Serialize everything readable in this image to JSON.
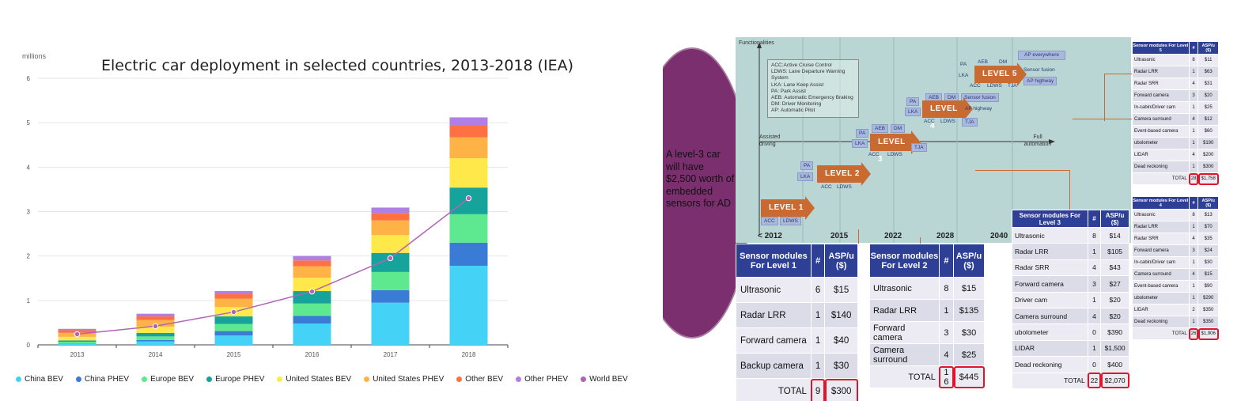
{
  "chart": {
    "title": "Electric car deployment in selected countries, 2013-2018 (IEA)",
    "unit": "millions"
  },
  "chart_data": {
    "type": "bar",
    "title": "Electric car deployment in selected countries, 2013-2018 (IEA)",
    "ylabel": "millions",
    "ylim": [
      0,
      6
    ],
    "yticks": [
      0,
      1,
      2,
      3,
      4,
      5,
      6
    ],
    "categories": [
      "2013",
      "2014",
      "2015",
      "2016",
      "2017",
      "2018"
    ],
    "stacked": true,
    "series": [
      {
        "name": "China BEV",
        "color": "#45d2f7",
        "values": [
          0.02,
          0.08,
          0.21,
          0.48,
          0.95,
          1.78
        ]
      },
      {
        "name": "China PHEV",
        "color": "#3a7bd5",
        "values": [
          0.01,
          0.03,
          0.1,
          0.17,
          0.28,
          0.52
        ]
      },
      {
        "name": "Europe BEV",
        "color": "#5ee88f",
        "values": [
          0.04,
          0.08,
          0.16,
          0.28,
          0.41,
          0.64
        ]
      },
      {
        "name": "Europe PHEV",
        "color": "#16a39b",
        "values": [
          0.03,
          0.08,
          0.17,
          0.28,
          0.43,
          0.6
        ]
      },
      {
        "name": "United States BEV",
        "color": "#ffe94a",
        "values": [
          0.08,
          0.14,
          0.21,
          0.3,
          0.4,
          0.66
        ]
      },
      {
        "name": "United States PHEV",
        "color": "#ffb347",
        "values": [
          0.09,
          0.15,
          0.19,
          0.26,
          0.33,
          0.47
        ]
      },
      {
        "name": "Other BEV",
        "color": "#ff7043",
        "values": [
          0.06,
          0.08,
          0.1,
          0.13,
          0.17,
          0.27
        ]
      },
      {
        "name": "Other PHEV",
        "color": "#b07fe5",
        "values": [
          0.03,
          0.06,
          0.07,
          0.1,
          0.12,
          0.18
        ]
      }
    ],
    "line": {
      "name": "World BEV",
      "color": "#b064b8",
      "values": [
        0.24,
        0.42,
        0.74,
        1.2,
        1.95,
        3.3
      ]
    }
  },
  "legend": [
    {
      "label": "China BEV",
      "color": "#45d2f7"
    },
    {
      "label": "China PHEV",
      "color": "#3a7bd5"
    },
    {
      "label": "Europe BEV",
      "color": "#5ee88f"
    },
    {
      "label": "Europe PHEV",
      "color": "#16a39b"
    },
    {
      "label": "United States BEV",
      "color": "#ffe94a"
    },
    {
      "label": "United States PHEV",
      "color": "#ffb347"
    },
    {
      "label": "Other BEV",
      "color": "#ff7043"
    },
    {
      "label": "Other PHEV",
      "color": "#b07fe5"
    },
    {
      "label": "World BEV",
      "color": "#b064b8"
    }
  ],
  "circle_text": "A level-3 car will have $2,500 worth of embedded sensors for AD",
  "roadmap": {
    "y_axis": "Functionalities",
    "x_assisted": "Assisted driving",
    "x_full": "Full automation",
    "abbreviations": [
      "ACC:Active Cruise Control",
      "LDWS: Lane Departure Warning System",
      "LKA: Lane Keep Assist",
      "PA: Park Assist",
      "AEB: Automatic Emergency Braking",
      "DM: Driver Monitoring",
      "AP: Automatic Pilot"
    ],
    "levels": [
      "LEVEL 1",
      "LEVEL 2",
      "LEVEL 3",
      "LEVEL 4",
      "LEVEL 5"
    ],
    "years": [
      "< 2012",
      "2015",
      "2022",
      "2028",
      "2040"
    ],
    "tags": {
      "l1": [
        "ACC",
        "LDWS"
      ],
      "l2": [
        "PA",
        "LKA",
        "ACC",
        "LDWS"
      ],
      "l3": [
        "PA",
        "AEB",
        "DM",
        "LKA",
        "ACC",
        "LDWS",
        "TJA"
      ],
      "l4": [
        "PA",
        "AEB",
        "DM",
        "Sensor fusion",
        "LKA",
        "AP highway",
        "ACC",
        "LDWS",
        "TJA"
      ],
      "l5": [
        "PA",
        "AEB",
        "DM",
        "AP everywhere",
        "LKA",
        "Sensor fusion",
        "ACC",
        "LDWS",
        "TJA",
        "AP highway"
      ]
    }
  },
  "table_l1": {
    "header": [
      "Sensor modules For Level 1",
      "#",
      "ASP/u ($)"
    ],
    "rows": [
      [
        "Ultrasonic",
        "6",
        "$15"
      ],
      [
        "Radar LRR",
        "1",
        "$140"
      ],
      [
        "Forward camera",
        "1",
        "$40"
      ],
      [
        "Backup camera",
        "1",
        "$30"
      ]
    ],
    "total": [
      "TOTAL",
      "9",
      "$300"
    ]
  },
  "table_l2": {
    "header": [
      "Sensor modules For Level 2",
      "#",
      "ASP/u ($)"
    ],
    "rows": [
      [
        "Ultrasonic",
        "8",
        "$15"
      ],
      [
        "Radar LRR",
        "1",
        "$135"
      ],
      [
        "Forward camera",
        "3",
        "$30"
      ],
      [
        "Camera surround",
        "4",
        "$25"
      ]
    ],
    "total": [
      "TOTAL",
      "1 6",
      "$445"
    ]
  },
  "table_l3": {
    "header": [
      "Sensor modules For Level 3",
      "#",
      "ASP/u ($)"
    ],
    "rows": [
      [
        "Ultrasonic",
        "8",
        "$14"
      ],
      [
        "Radar LRR",
        "1",
        "$105"
      ],
      [
        "Radar SRR",
        "4",
        "$43"
      ],
      [
        "Forward camera",
        "3",
        "$27"
      ],
      [
        "Driver cam",
        "1",
        "$20"
      ],
      [
        "Camera surround",
        "4",
        "$20"
      ],
      [
        "ubolometer",
        "0",
        "$390"
      ],
      [
        "LIDAR",
        "1",
        "$1,500"
      ],
      [
        "Dead reckoning",
        "0",
        "$400"
      ]
    ],
    "total": [
      "TOTAL",
      "22",
      "$2,070"
    ]
  },
  "table_l5": {
    "header": [
      "Sensor modules For Level 5",
      "#",
      "ASP/u ($)"
    ],
    "rows": [
      [
        "Ultrasonic",
        "8",
        "$11"
      ],
      [
        "Radar LRR",
        "1",
        "$63"
      ],
      [
        "Radar SRR",
        "4",
        "$31"
      ],
      [
        "Forward camera",
        "3",
        "$20"
      ],
      [
        "In-cabin/Driver cam",
        "1",
        "$25"
      ],
      [
        "Camera surround",
        "4",
        "$12"
      ],
      [
        "Event-based camera",
        "1",
        "$60"
      ],
      [
        "ubolometer",
        "1",
        "$190"
      ],
      [
        "LIDAR",
        "4",
        "$200"
      ],
      [
        "Dead reckoning",
        "1",
        "$300"
      ]
    ],
    "total": [
      "TOTAL",
      "28",
      "$1,758"
    ]
  },
  "table_l4": {
    "header": [
      "Sensor modules For Level 4",
      "#",
      "ASP/u ($)"
    ],
    "rows": [
      [
        "Ultrasonic",
        "8",
        "$13"
      ],
      [
        "Radar LRR",
        "1",
        "$70"
      ],
      [
        "Radar SRR",
        "4",
        "$35"
      ],
      [
        "Forward camera",
        "3",
        "$24"
      ],
      [
        "In-cabin/Driver cam",
        "1",
        "$30"
      ],
      [
        "Camera surround",
        "4",
        "$15"
      ],
      [
        "Event-based camera",
        "1",
        "$90"
      ],
      [
        "ubolometer",
        "1",
        "$290"
      ],
      [
        "LIDAR",
        "2",
        "$350"
      ],
      [
        "Dead reckoning",
        "1",
        "$350"
      ]
    ],
    "total": [
      "TOTAL",
      "26",
      "$1,906"
    ]
  }
}
